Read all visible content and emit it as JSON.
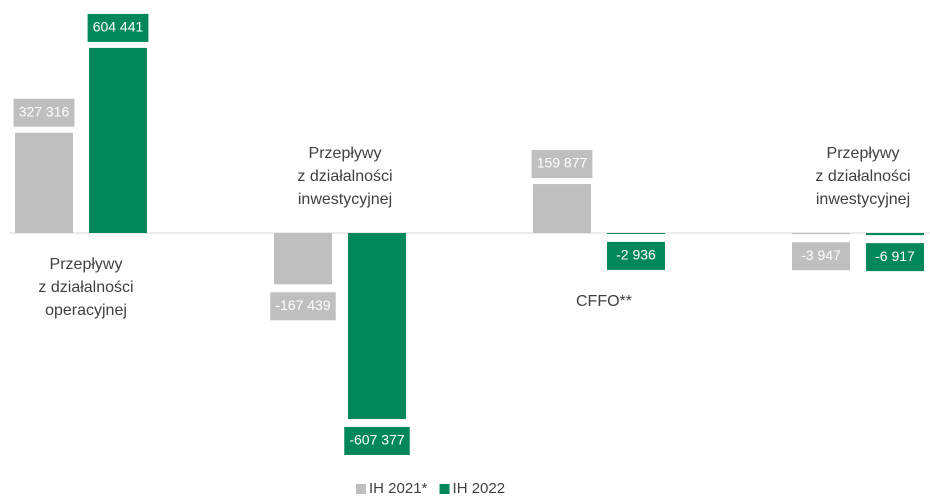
{
  "chart_data": {
    "type": "bar",
    "categories": [
      [
        "Przepływy",
        "z działalności",
        "operacyjnej"
      ],
      [
        "Przepływy",
        "z działalności",
        "inwestycyjnej"
      ],
      [
        "CFFO**"
      ],
      [
        "Przepływy",
        "z działalności",
        "inwestycyjnej"
      ]
    ],
    "series": [
      {
        "name": "IH 2021*",
        "color": "#bfbfbf",
        "values": [
          327316,
          -167439,
          159877,
          -3947
        ],
        "value_labels": [
          "327 316",
          "-167 439",
          "159 877",
          "-3 947"
        ]
      },
      {
        "name": "IH 2022",
        "color": "#00875a",
        "values": [
          604441,
          -607377,
          -2936,
          -6917
        ],
        "value_labels": [
          "604 441",
          "-607 377",
          "-2 936",
          "-6 917"
        ]
      }
    ]
  }
}
